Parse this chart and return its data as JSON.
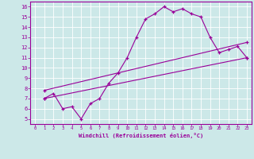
{
  "xlabel": "Windchill (Refroidissement éolien,°C)",
  "bg_color": "#cce8e8",
  "line_color": "#990099",
  "grid_color": "#ffffff",
  "xlim": [
    -0.5,
    23.5
  ],
  "ylim": [
    4.5,
    16.5
  ],
  "xticks": [
    0,
    1,
    2,
    3,
    4,
    5,
    6,
    7,
    8,
    9,
    10,
    11,
    12,
    13,
    14,
    15,
    16,
    17,
    18,
    19,
    20,
    21,
    22,
    23
  ],
  "yticks": [
    5,
    6,
    7,
    8,
    9,
    10,
    11,
    12,
    13,
    14,
    15,
    16
  ],
  "series1_x": [
    1,
    2,
    3,
    4,
    5,
    6,
    7,
    8,
    9,
    10,
    11,
    12,
    13,
    14,
    15,
    16,
    17,
    18,
    19,
    20,
    21,
    22,
    23
  ],
  "series1_y": [
    7.0,
    7.5,
    6.0,
    6.2,
    5.0,
    6.5,
    7.0,
    8.5,
    9.5,
    11.0,
    13.0,
    14.8,
    15.3,
    16.0,
    15.5,
    15.8,
    15.3,
    15.0,
    13.0,
    11.5,
    11.8,
    12.1,
    11.0
  ],
  "series2_x": [
    1,
    23
  ],
  "series2_y": [
    7.0,
    11.0
  ],
  "series3_x": [
    1,
    23
  ],
  "series3_y": [
    7.8,
    12.5
  ]
}
